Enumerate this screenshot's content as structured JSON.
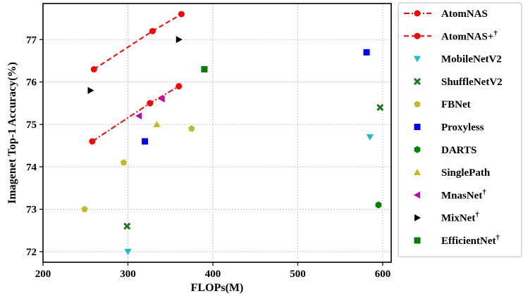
{
  "chart_data": {
    "type": "scatter",
    "xlabel": "FLOPs(M)",
    "ylabel": "Imagenet Top-1 Accuracy(%)",
    "xlim": [
      200,
      610
    ],
    "ylim": [
      71.75,
      77.85
    ],
    "xticks": [
      "200",
      "300",
      "400",
      "500",
      "600"
    ],
    "xtick_values": [
      200,
      300,
      400,
      500,
      600
    ],
    "yticks": [
      "72",
      "73",
      "74",
      "75",
      "76",
      "77"
    ],
    "ytick_values": [
      72,
      73,
      74,
      75,
      76,
      77
    ],
    "grid": true,
    "legend_position": "outside-right",
    "series": [
      {
        "name": "AtomNAS",
        "marker": "circle",
        "color": "#ff0000",
        "line": "dashdot",
        "x": [
          258,
          326,
          360
        ],
        "y": [
          74.6,
          75.5,
          75.9
        ]
      },
      {
        "name": "AtomNAS+",
        "dagger": "†",
        "marker": "circle",
        "color": "#ff0000",
        "line": "dashed",
        "x": [
          260,
          329,
          363
        ],
        "y": [
          76.3,
          77.2,
          77.6
        ]
      },
      {
        "name": "MobileNetV2",
        "marker": "triangle-down",
        "color": "#17becf",
        "line": "none",
        "x": [
          300,
          585
        ],
        "y": [
          72.0,
          74.7
        ]
      },
      {
        "name": "ShuffleNetV2",
        "marker": "x",
        "color": "#1f7a1f",
        "line": "none",
        "x": [
          299,
          597
        ],
        "y": [
          72.6,
          75.4
        ]
      },
      {
        "name": "FBNet",
        "marker": "pentagon",
        "color": "#bcbd22",
        "line": "none",
        "x": [
          249,
          295,
          375
        ],
        "y": [
          73.0,
          74.1,
          74.9
        ]
      },
      {
        "name": "Proxyless",
        "marker": "square",
        "color": "#0000ff",
        "line": "none",
        "x": [
          320,
          581
        ],
        "y": [
          74.6,
          76.7
        ]
      },
      {
        "name": "DARTS",
        "marker": "hexagon",
        "color": "#008000",
        "line": "none",
        "x": [
          595
        ],
        "y": [
          73.1
        ]
      },
      {
        "name": "SinglePath",
        "marker": "triangle-up",
        "color": "#bcbd22",
        "line": "none",
        "x": [
          334
        ],
        "y": [
          75.0
        ]
      },
      {
        "name": "MnasNet",
        "dagger": "†",
        "marker": "triangle-left",
        "color": "#bf00bf",
        "line": "none",
        "x": [
          313,
          340
        ],
        "y": [
          75.2,
          75.6
        ]
      },
      {
        "name": "MixNet",
        "dagger": "†",
        "marker": "triangle-right",
        "color": "#000000",
        "line": "none",
        "x": [
          256,
          360
        ],
        "y": [
          75.8,
          77.0
        ]
      },
      {
        "name": "EfficientNet",
        "dagger": "†",
        "marker": "square",
        "color": "#008000",
        "line": "none",
        "x": [
          390
        ],
        "y": [
          76.3
        ]
      }
    ]
  }
}
